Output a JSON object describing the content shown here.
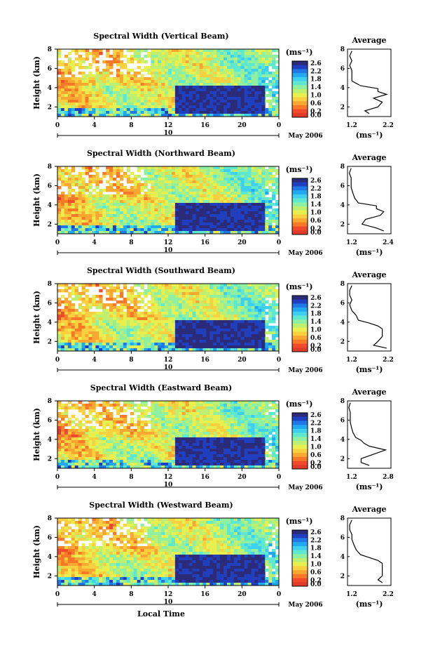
{
  "figure": {
    "x_label": "Local Time",
    "x_ticks": [
      "0",
      "4",
      "8",
      "12",
      "16",
      "20",
      "0"
    ],
    "day_marker": "10",
    "month_label": "May 2006",
    "y_label": "Height (km)",
    "y_ticks": [
      "8",
      "6",
      "4",
      "2"
    ],
    "cbar_unit": "(ms⁻¹)",
    "cbar_ticks": [
      "2.6",
      "2.4",
      "2.2",
      "2.0",
      "1.8",
      "1.6",
      "1.4",
      "1.2",
      "1.0",
      "0.8",
      "0.6",
      "0.4",
      "0.2",
      "0.0"
    ],
    "avg_title": "Average",
    "avg_unit": "(ms⁻¹)",
    "avg_y_ticks": [
      "8",
      "6",
      "4",
      "2"
    ],
    "colors": {
      "colormap": [
        "#2b2b7a",
        "#1f3fbf",
        "#1f78e6",
        "#20a8f0",
        "#3fd0f0",
        "#5fe8d0",
        "#8ef0a0",
        "#bdf070",
        "#e8f050",
        "#f8d040",
        "#f8a830",
        "#f87828",
        "#f04a2a",
        "#e03a28"
      ]
    }
  },
  "chart_data": [
    {
      "type": "heatmap",
      "title": "Spectral Width (Vertical Beam)",
      "xlabel": "Local Time",
      "ylabel": "Height (km)",
      "xlim_hours": [
        0,
        24
      ],
      "ylim_km": [
        1,
        8
      ],
      "color_range_ms": [
        0.0,
        2.6
      ],
      "avg_profile": {
        "x_ticks": [
          "1.2",
          "2.2"
        ],
        "xlim": [
          1.2,
          2.2
        ],
        "height_km": [
          1.3,
          1.6,
          2.0,
          2.5,
          2.9,
          3.3,
          3.6,
          3.9,
          4.2,
          4.7,
          5.2,
          5.8,
          6.3,
          6.8,
          7.3,
          7.8
        ],
        "value": [
          1.7,
          1.6,
          1.9,
          2.0,
          1.8,
          2.1,
          1.9,
          1.9,
          1.5,
          1.3,
          1.3,
          1.3,
          1.25,
          1.3,
          1.25,
          1.3
        ]
      }
    },
    {
      "type": "heatmap",
      "title": "Spectral Width (Northward Beam)",
      "xlabel": "Local Time",
      "ylabel": "Height (km)",
      "xlim_hours": [
        0,
        24
      ],
      "ylim_km": [
        1,
        8
      ],
      "color_range_ms": [
        0.0,
        2.6
      ],
      "avg_profile": {
        "x_ticks": [
          "1.2",
          "2.4"
        ],
        "xlim": [
          1.2,
          2.4
        ],
        "height_km": [
          1.3,
          1.6,
          2.0,
          2.5,
          2.9,
          3.3,
          3.6,
          3.9,
          4.2,
          4.7,
          5.2,
          5.8,
          6.3,
          6.8,
          7.3,
          7.8
        ],
        "value": [
          2.2,
          2.0,
          1.6,
          1.7,
          2.1,
          2.2,
          2.0,
          2.0,
          1.5,
          1.4,
          1.35,
          1.3,
          1.3,
          1.3,
          1.25,
          1.3
        ]
      }
    },
    {
      "type": "heatmap",
      "title": "Spectral Width (Southward Beam)",
      "xlabel": "Local Time",
      "ylabel": "Height (km)",
      "xlim_hours": [
        0,
        24
      ],
      "ylim_km": [
        1,
        8
      ],
      "color_range_ms": [
        0.0,
        2.6
      ],
      "avg_profile": {
        "x_ticks": [
          "1.2",
          "2.2"
        ],
        "xlim": [
          1.2,
          2.2
        ],
        "height_km": [
          1.3,
          1.6,
          2.0,
          2.5,
          2.9,
          3.3,
          3.6,
          3.9,
          4.2,
          4.7,
          5.2,
          5.8,
          6.3,
          6.8,
          7.3,
          7.8
        ],
        "value": [
          2.1,
          1.8,
          1.9,
          2.0,
          2.0,
          2.0,
          1.9,
          1.7,
          1.45,
          1.4,
          1.3,
          1.25,
          1.3,
          1.25,
          1.25,
          1.3
        ]
      }
    },
    {
      "type": "heatmap",
      "title": "Spectral Width (Eastward Beam)",
      "xlabel": "Local Time",
      "ylabel": "Height (km)",
      "xlim_hours": [
        0,
        24
      ],
      "ylim_km": [
        1,
        8
      ],
      "color_range_ms": [
        0.0,
        2.6
      ],
      "avg_profile": {
        "x_ticks": [
          "1.2",
          "2.8"
        ],
        "xlim": [
          1.2,
          2.8
        ],
        "height_km": [
          1.3,
          1.6,
          2.0,
          2.5,
          2.9,
          3.3,
          3.6,
          3.9,
          4.2,
          4.7,
          5.2,
          5.8,
          6.3,
          6.8,
          7.3,
          7.8
        ],
        "value": [
          2.0,
          1.7,
          1.7,
          2.2,
          2.6,
          2.0,
          1.8,
          1.7,
          1.5,
          1.4,
          1.35,
          1.3,
          1.3,
          1.3,
          1.25,
          1.3
        ]
      }
    },
    {
      "type": "heatmap",
      "title": "Spectral Width (Westward Beam)",
      "xlabel": "Local Time",
      "ylabel": "Height (km)",
      "xlim_hours": [
        0,
        24
      ],
      "ylim_km": [
        1,
        8
      ],
      "color_range_ms": [
        0.0,
        2.6
      ],
      "avg_profile": {
        "x_ticks": [
          "1.2",
          "2.2"
        ],
        "xlim": [
          1.2,
          2.2
        ],
        "height_km": [
          1.3,
          1.6,
          2.0,
          2.5,
          2.9,
          3.3,
          3.6,
          3.9,
          4.2,
          4.7,
          5.2,
          5.8,
          6.3,
          6.8,
          7.3,
          7.8
        ],
        "value": [
          2.0,
          1.9,
          2.0,
          2.0,
          2.0,
          2.0,
          1.9,
          1.7,
          1.5,
          1.4,
          1.35,
          1.3,
          1.3,
          1.25,
          1.25,
          1.3
        ]
      }
    }
  ]
}
